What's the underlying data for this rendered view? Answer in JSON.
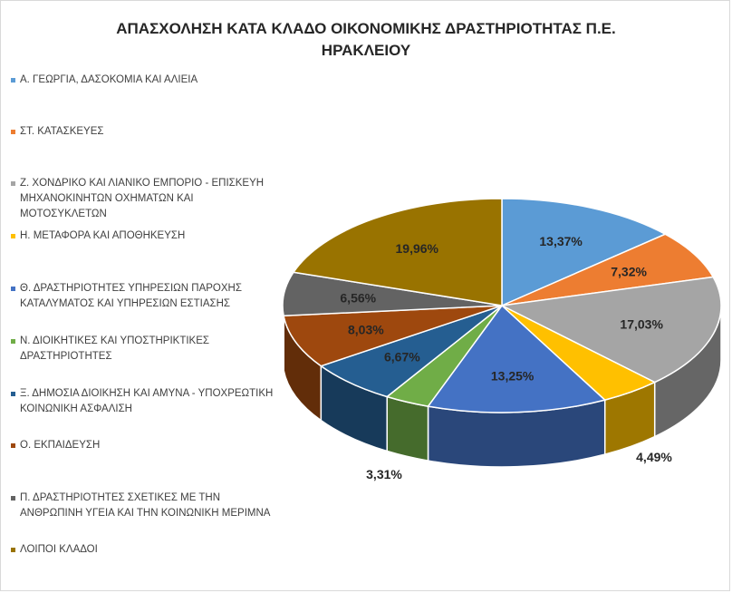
{
  "chart_data": {
    "type": "pie",
    "title_lines": [
      "ΑΠΑΣΧΟΛΗΣΗ ΚΑΤΑ ΚΛΑΔΟ ΟΙΚΟΝΟΜΙΚΗΣ ΔΡΑΣΤΗΡΙΟΤΗΤΑΣ Π.Ε.",
      "ΗΡΑΚΛΕΙΟΥ"
    ],
    "legend_position": "left",
    "slices": [
      {
        "name": "Α. ΓΕΩΡΓΙΑ, ΔΑΣΟΚΟΜΙΑ ΚΑΙ ΑΛΙΕΙΑ",
        "value": 13.37,
        "label": "13,37%",
        "color": "#5B9BD5"
      },
      {
        "name": "ΣΤ. ΚΑΤΑΣΚΕΥΕΣ",
        "value": 7.32,
        "label": "7,32%",
        "color": "#ED7D31"
      },
      {
        "name": "Ζ. ΧΟΝΔΡΙΚΟ ΚΑΙ ΛΙΑΝΙΚΟ ΕΜΠΟΡΙΟ - ΕΠΙΣΚΕΥΗ ΜΗΧΑΝΟΚΙΝΗΤΩΝ ΟΧΗΜΑΤΩΝ ΚΑΙ ΜΟΤΟΣΥΚΛΕΤΩΝ",
        "value": 17.03,
        "label": "17,03%",
        "color": "#A5A5A5"
      },
      {
        "name": "Η. ΜΕΤΑΦΟΡΑ ΚΑΙ ΑΠΟΘΗΚΕΥΣΗ",
        "value": 4.49,
        "label": "4,49%",
        "color": "#FFC000"
      },
      {
        "name": "Θ. ΔΡΑΣΤΗΡΙΟΤΗΤΕΣ ΥΠΗΡΕΣΙΩΝ ΠΑΡΟΧΗΣ ΚΑΤΑΛΥΜΑΤΟΣ ΚΑΙ ΥΠΗΡΕΣΙΩΝ ΕΣΤΙΑΣΗΣ",
        "value": 13.25,
        "label": "13,25%",
        "color": "#4472C4"
      },
      {
        "name": "Ν. ΔΙΟΙΚΗΤΙΚΕΣ ΚΑΙ ΥΠΟΣΤΗΡΙΚΤΙΚΕΣ ΔΡΑΣΤΗΡΙΟΤΗΤΕΣ",
        "value": 3.31,
        "label": "3,31%",
        "color": "#70AD47"
      },
      {
        "name": "Ξ. ΔΗΜΟΣΙΑ ΔΙΟΙΚΗΣΗ ΚΑΙ ΑΜΥΝΑ - ΥΠΟΧΡΕΩΤΙΚΗ ΚΟΙΝΩΝΙΚΗ ΑΣΦΑΛΙΣΗ",
        "value": 6.67,
        "label": "6,67%",
        "color": "#255E91"
      },
      {
        "name": "Ο. ΕΚΠΑΙΔΕΥΣΗ",
        "value": 8.03,
        "label": "8,03%",
        "color": "#9E480E"
      },
      {
        "name": "Π. ΔΡΑΣΤΗΡΙΟΤΗΤΕΣ ΣΧΕΤΙΚΕΣ ΜΕ ΤΗΝ ΑΝΘΡΩΠΙΝΗ ΥΓΕΙΑ ΚΑΙ ΤΗΝ ΚΟΙΝΩΝΙΚΗ ΜΕΡΙΜΝΑ",
        "value": 6.56,
        "label": "6,56%",
        "color": "#636363"
      },
      {
        "name": "ΛΟΙΠΟΙ ΚΛΑΔΟΙ",
        "value": 19.96,
        "label": "19,96%",
        "color": "#997300"
      }
    ]
  }
}
